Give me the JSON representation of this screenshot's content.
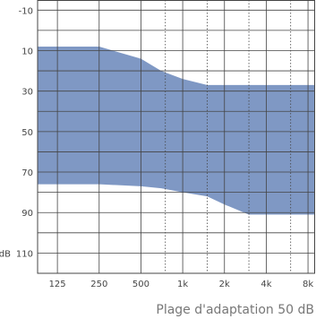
{
  "chart_data": {
    "type": "area",
    "title": "",
    "caption": "Plage d'adaptation 50 dB",
    "xlabel": "",
    "ylabel": "dB",
    "x_tick_labels": [
      "125",
      "250",
      "500",
      "1k",
      "2k",
      "4k",
      "8k"
    ],
    "x_ticks_hz": [
      125,
      250,
      500,
      1000,
      2000,
      4000,
      8000
    ],
    "y_tick_labels": [
      "-10",
      "10",
      "30",
      "50",
      "70",
      "90",
      "110"
    ],
    "y_ticks": [
      -10,
      10,
      30,
      50,
      70,
      90,
      110
    ],
    "y_top_label_prefix": "",
    "y_unit_label": "dB",
    "ylim": [
      -15,
      120
    ],
    "y_inverted": true,
    "x_scale": "log",
    "xlim_hz": [
      90,
      9000
    ],
    "dotted_gridlines_hz": [
      750,
      1500,
      3000,
      6000
    ],
    "grid": true,
    "fill_color": "#7f98c4",
    "grid_color": "#444444",
    "band": {
      "name": "",
      "x_hz": [
        90,
        125,
        250,
        500,
        700,
        1000,
        1500,
        2000,
        3000,
        4000,
        6000,
        8000,
        9000
      ],
      "upper_db": [
        8,
        8,
        8,
        14,
        20,
        24,
        27,
        27,
        27,
        27,
        27,
        27,
        27
      ],
      "lower_db": [
        76,
        76,
        76,
        77,
        78,
        80,
        82,
        86,
        91,
        91,
        91,
        91,
        91
      ]
    }
  }
}
